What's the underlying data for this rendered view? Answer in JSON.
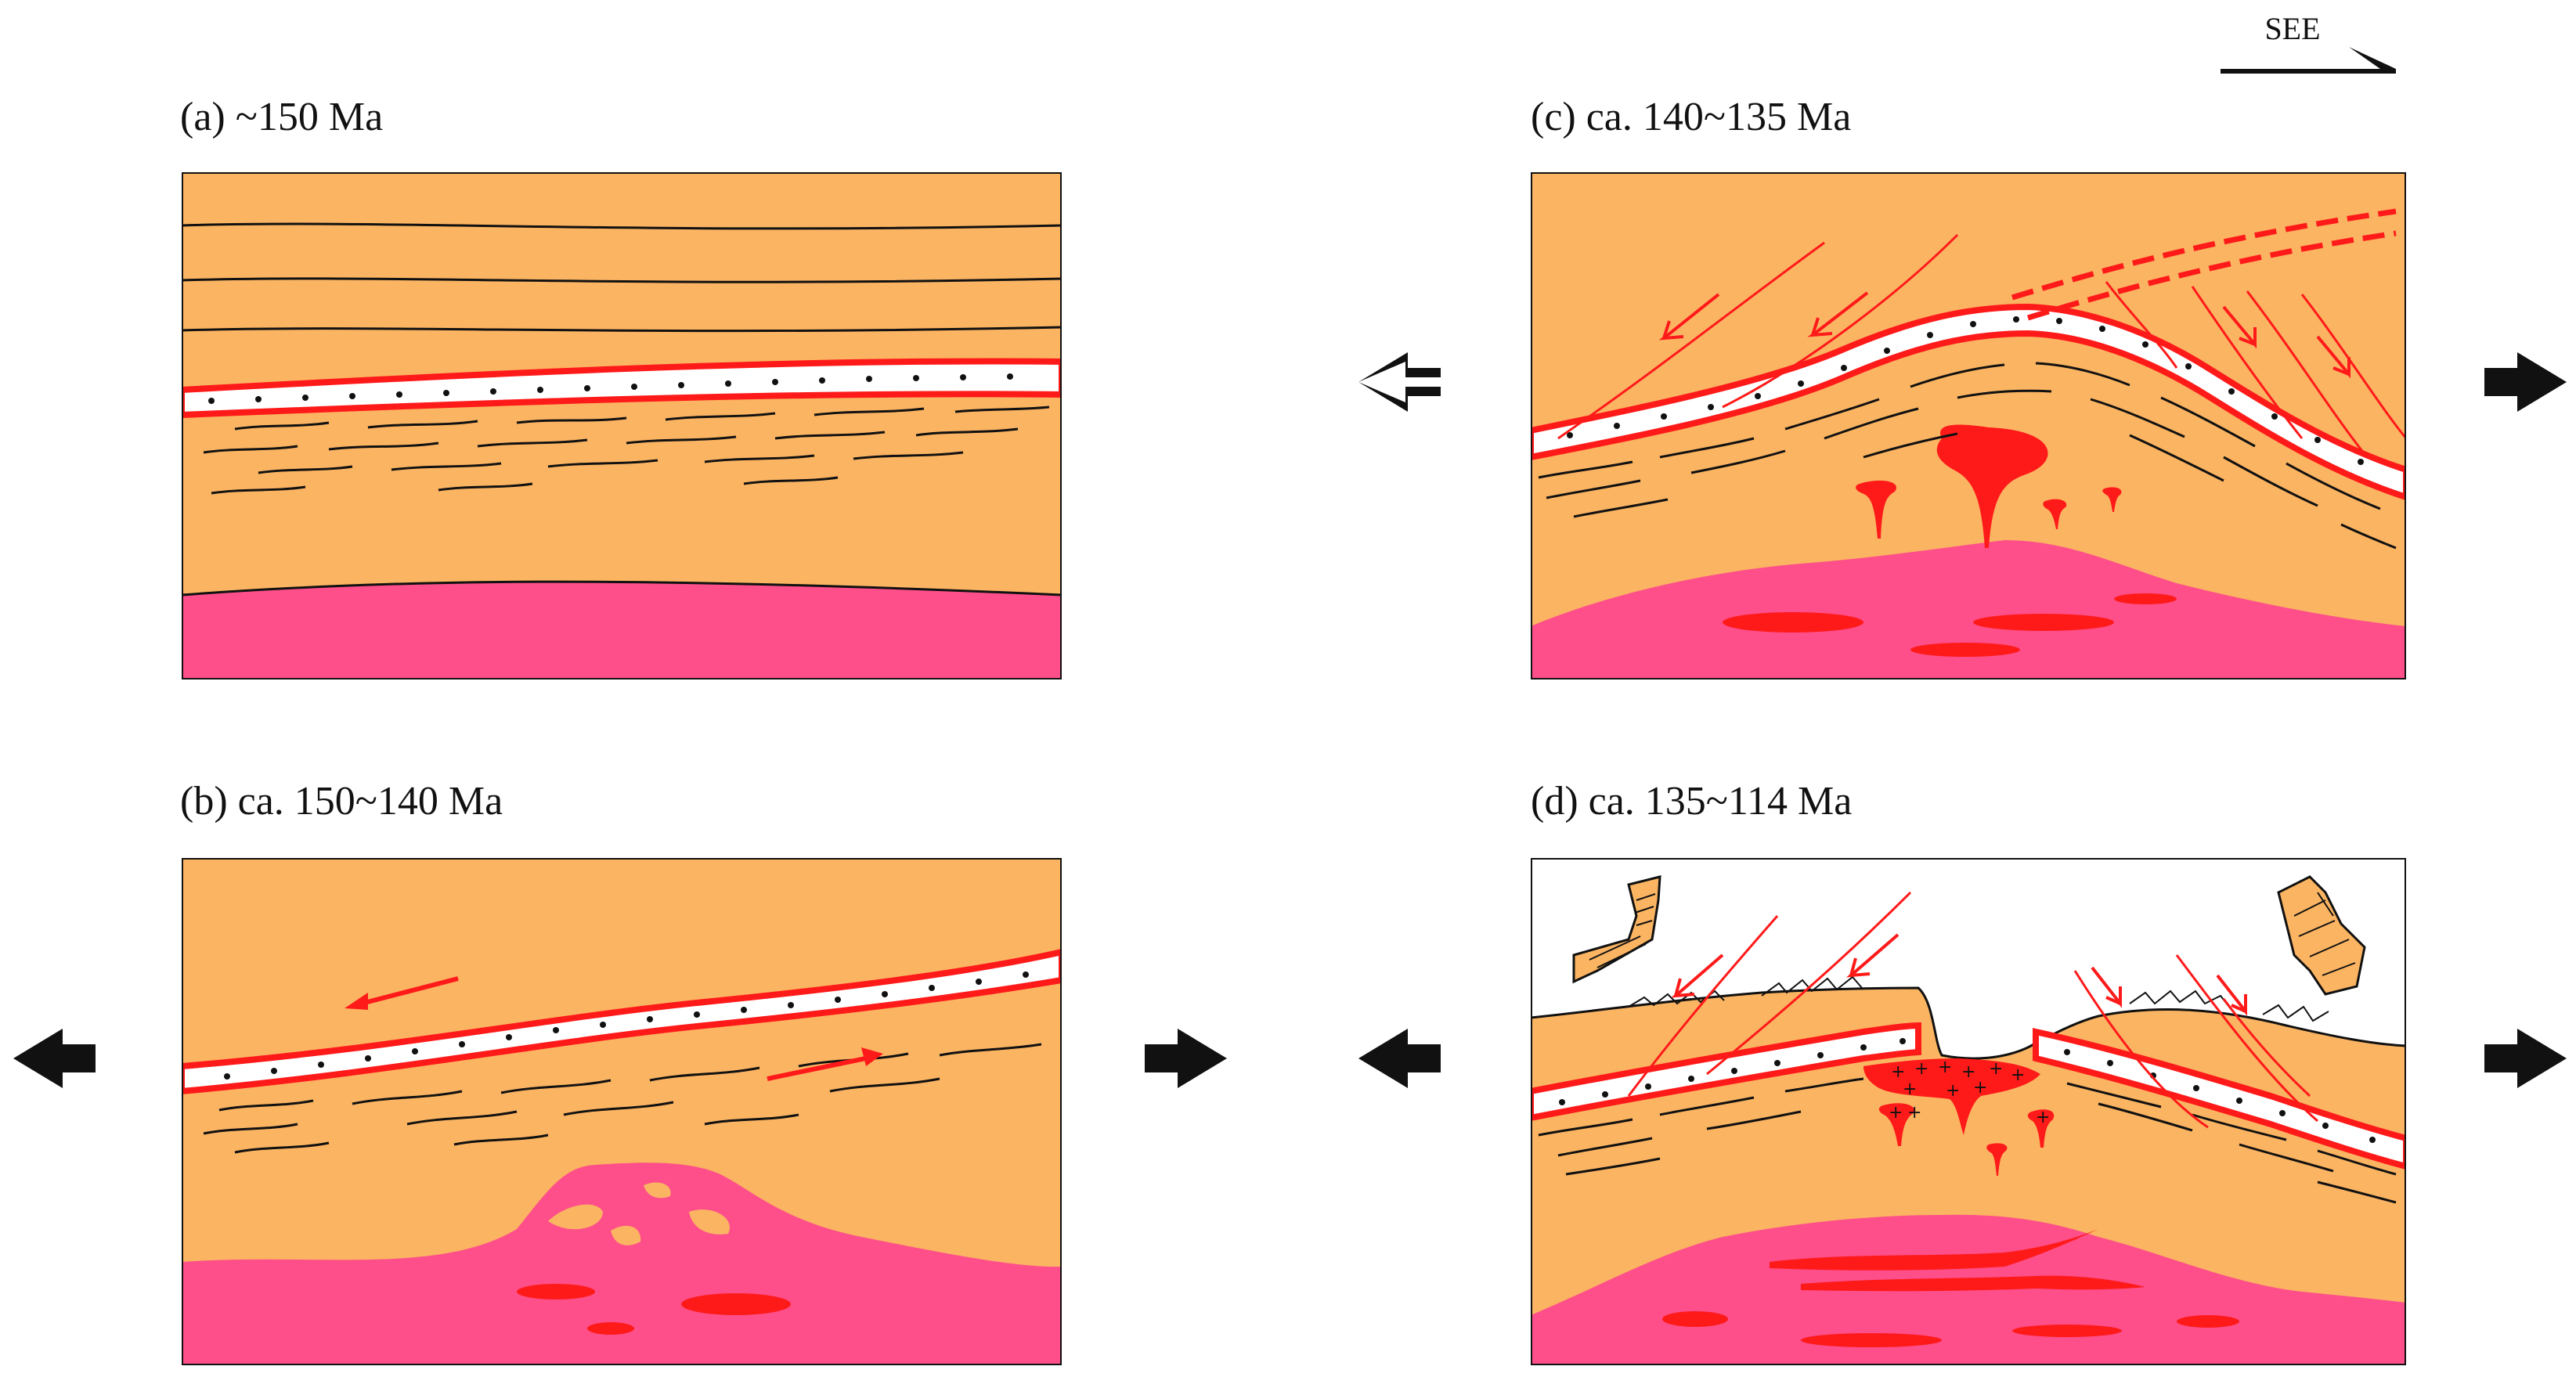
{
  "direction": {
    "label": "SEE"
  },
  "panels": {
    "a": {
      "label": "(a)  ~150 Ma"
    },
    "b": {
      "label": "(b)  ca. 150~140 Ma"
    },
    "c": {
      "label": "(c)  ca. 140~135 Ma"
    },
    "d": {
      "label": "(d)  ca. 135~114 Ma"
    }
  },
  "colors": {
    "crust": "#FBB462",
    "mantle_melt": "#FE4F8A",
    "magma": "#FF1A1A",
    "fault": "#FF2A1A",
    "outline": "#111111",
    "sky": "#ffffff"
  }
}
